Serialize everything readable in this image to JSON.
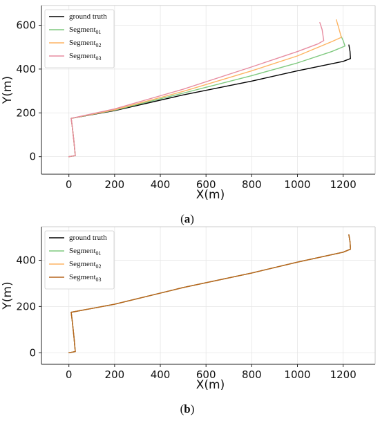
{
  "chart_data": [
    {
      "type": "line",
      "panel": "a",
      "caption": "(a)",
      "xlabel": "X(m)",
      "ylabel": "Y(m)",
      "xlim": [
        -120,
        1340
      ],
      "ylim": [
        -80,
        690
      ],
      "xticks": [
        0,
        200,
        400,
        600,
        800,
        1000,
        1200
      ],
      "yticks": [
        0,
        200,
        400,
        600
      ],
      "grid": true,
      "legend_position": "top-left",
      "series": [
        {
          "name": "ground truth",
          "sub": "",
          "color": "#000000",
          "points": [
            [
              0,
              0
            ],
            [
              28,
              5
            ],
            [
              22,
              70
            ],
            [
              15,
              135
            ],
            [
              10,
              175
            ],
            [
              200,
              210
            ],
            [
              500,
              282
            ],
            [
              800,
              345
            ],
            [
              1000,
              392
            ],
            [
              1200,
              435
            ],
            [
              1232,
              448
            ],
            [
              1230,
              480
            ],
            [
              1225,
              510
            ]
          ]
        },
        {
          "name": "Segment",
          "sub": "01",
          "color": "#7fc97f",
          "points": [
            [
              0,
              0
            ],
            [
              28,
              5
            ],
            [
              22,
              70
            ],
            [
              15,
              135
            ],
            [
              10,
              175
            ],
            [
              200,
              212
            ],
            [
              500,
              290
            ],
            [
              800,
              370
            ],
            [
              1000,
              428
            ],
            [
              1150,
              480
            ],
            [
              1208,
              505
            ],
            [
              1200,
              530
            ],
            [
              1190,
              552
            ]
          ]
        },
        {
          "name": "Segment",
          "sub": "02",
          "color": "#fdb462",
          "points": [
            [
              0,
              0
            ],
            [
              28,
              5
            ],
            [
              22,
              70
            ],
            [
              15,
              135
            ],
            [
              10,
              175
            ],
            [
              200,
              214
            ],
            [
              500,
              298
            ],
            [
              800,
              392
            ],
            [
              1000,
              460
            ],
            [
              1150,
              525
            ],
            [
              1192,
              545
            ],
            [
              1180,
              590
            ],
            [
              1170,
              625
            ]
          ]
        },
        {
          "name": "Segment",
          "sub": "03",
          "color": "#e78ca0",
          "points": [
            [
              0,
              0
            ],
            [
              28,
              5
            ],
            [
              22,
              70
            ],
            [
              15,
              135
            ],
            [
              10,
              175
            ],
            [
              200,
              218
            ],
            [
              500,
              308
            ],
            [
              800,
              410
            ],
            [
              1000,
              480
            ],
            [
              1090,
              515
            ],
            [
              1115,
              530
            ],
            [
              1108,
              580
            ],
            [
              1098,
              612
            ]
          ]
        }
      ]
    },
    {
      "type": "line",
      "panel": "b",
      "caption": "(b)",
      "xlabel": "X(m)",
      "ylabel": "Y(m)",
      "xlim": [
        -120,
        1340
      ],
      "ylim": [
        -50,
        545
      ],
      "xticks": [
        0,
        200,
        400,
        600,
        800,
        1000,
        1200
      ],
      "yticks": [
        0,
        200,
        400
      ],
      "grid": true,
      "legend_position": "top-left",
      "series": [
        {
          "name": "ground truth",
          "sub": "",
          "color": "#000000",
          "points": [
            [
              0,
              0
            ],
            [
              28,
              5
            ],
            [
              22,
              70
            ],
            [
              15,
              135
            ],
            [
              10,
              175
            ],
            [
              200,
              210
            ],
            [
              500,
              282
            ],
            [
              800,
              345
            ],
            [
              1000,
              392
            ],
            [
              1200,
              435
            ],
            [
              1232,
              448
            ],
            [
              1230,
              480
            ],
            [
              1225,
              510
            ]
          ]
        },
        {
          "name": "Segment",
          "sub": "01",
          "color": "#7fc97f",
          "points": [
            [
              0,
              0
            ],
            [
              28,
              5
            ],
            [
              22,
              70
            ],
            [
              15,
              135
            ],
            [
              10,
              175
            ],
            [
              200,
              210
            ],
            [
              500,
              282
            ],
            [
              800,
              345
            ],
            [
              1000,
              392
            ],
            [
              1200,
              435
            ],
            [
              1232,
              448
            ],
            [
              1230,
              480
            ],
            [
              1225,
              510
            ]
          ]
        },
        {
          "name": "Segment",
          "sub": "02",
          "color": "#fdb462",
          "points": [
            [
              0,
              0
            ],
            [
              28,
              5
            ],
            [
              22,
              70
            ],
            [
              15,
              135
            ],
            [
              10,
              175
            ],
            [
              200,
              210
            ],
            [
              500,
              282
            ],
            [
              800,
              345
            ],
            [
              1000,
              392
            ],
            [
              1200,
              435
            ],
            [
              1232,
              448
            ],
            [
              1230,
              480
            ],
            [
              1225,
              510
            ]
          ]
        },
        {
          "name": "Segment",
          "sub": "03",
          "color": "#b5651d",
          "points": [
            [
              0,
              0
            ],
            [
              28,
              5
            ],
            [
              22,
              70
            ],
            [
              15,
              135
            ],
            [
              10,
              175
            ],
            [
              200,
              210
            ],
            [
              500,
              282
            ],
            [
              800,
              345
            ],
            [
              1000,
              392
            ],
            [
              1200,
              435
            ],
            [
              1232,
              448
            ],
            [
              1230,
              480
            ],
            [
              1225,
              510
            ]
          ]
        }
      ]
    }
  ]
}
